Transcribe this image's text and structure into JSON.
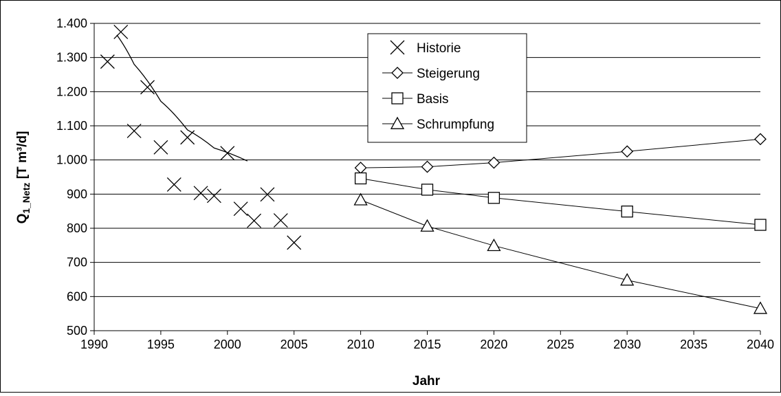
{
  "chart_data": {
    "type": "scatter",
    "xlabel": "Jahr",
    "ylabel": "Q1_Netz [T m³/d]",
    "ylabel_parts": {
      "main": "Q",
      "sub": "1_Netz",
      "rest": " [T m³/d]"
    },
    "xlim": [
      1990,
      2040
    ],
    "ylim": [
      500,
      1400
    ],
    "x_ticks": [
      1990,
      1995,
      2000,
      2005,
      2010,
      2015,
      2020,
      2025,
      2030,
      2035,
      2040
    ],
    "x_tick_labels": [
      "1990",
      "1995",
      "2000",
      "2005",
      "2010",
      "2015",
      "2020",
      "2025",
      "2030",
      "2035",
      "2040"
    ],
    "y_ticks": [
      500,
      600,
      700,
      800,
      900,
      1000,
      1100,
      1200,
      1300,
      1400
    ],
    "y_tick_labels": [
      "500",
      "600",
      "700",
      "800",
      "900",
      "1.000",
      "1.100",
      "1.200",
      "1.300",
      "1.400"
    ],
    "grid": "horizontal",
    "legend_position": "top-center",
    "series": [
      {
        "name": "Historie",
        "marker": "x",
        "line": false,
        "x": [
          1991,
          1992,
          1993,
          1994,
          1995,
          1996,
          1997,
          1998,
          1999,
          2000,
          2001,
          2002,
          2003,
          2004,
          2005
        ],
        "y": [
          1288,
          1375,
          1085,
          1213,
          1037,
          928,
          1066,
          903,
          895,
          1020,
          857,
          822,
          899,
          823,
          758
        ]
      },
      {
        "name": "Steigerung",
        "marker": "diamond",
        "line": true,
        "x": [
          2010,
          2015,
          2020,
          2030,
          2040
        ],
        "y": [
          977,
          980,
          992,
          1025,
          1061
        ]
      },
      {
        "name": "Basis",
        "marker": "square",
        "line": true,
        "x": [
          2010,
          2015,
          2020,
          2030,
          2040
        ],
        "y": [
          946,
          913,
          889,
          849,
          810
        ]
      },
      {
        "name": "Schrumpfung",
        "marker": "triangle",
        "line": true,
        "x": [
          2010,
          2015,
          2020,
          2030,
          2040
        ],
        "y": [
          883,
          806,
          749,
          648,
          565
        ]
      }
    ],
    "trendline": {
      "series": "Historie",
      "x": [
        1991.7,
        1993,
        1995,
        1997,
        1999,
        2001.5
      ],
      "y": [
        1366,
        1280,
        1172,
        1088,
        1035,
        997
      ]
    }
  }
}
